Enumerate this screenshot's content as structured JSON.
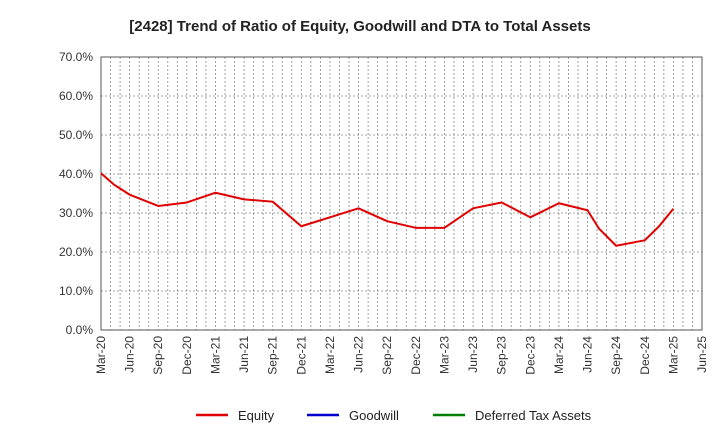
{
  "chart_data": {
    "type": "line",
    "title": "[2428]  Trend of Ratio of Equity, Goodwill and DTA to Total Assets",
    "xlabel": "",
    "ylabel": "",
    "ylim": [
      0,
      70
    ],
    "y_ticks": [
      "0.0%",
      "10.0%",
      "20.0%",
      "30.0%",
      "40.0%",
      "50.0%",
      "60.0%",
      "70.0%"
    ],
    "x_ticks": [
      "Mar-20",
      "Jun-20",
      "Sep-20",
      "Dec-20",
      "Mar-21",
      "Jun-21",
      "Sep-21",
      "Dec-21",
      "Mar-22",
      "Jun-22",
      "Sep-22",
      "Dec-22",
      "Mar-23",
      "Jun-23",
      "Sep-23",
      "Dec-23",
      "Mar-24",
      "Jun-24",
      "Sep-24",
      "Dec-24",
      "Mar-25",
      "Jun-25"
    ],
    "grid": true,
    "legend_position": "bottom",
    "series": [
      {
        "name": "Equity",
        "color": "#e00000",
        "x": [
          "Mar-20",
          "Jun-20",
          "Sep-20",
          "Dec-20",
          "Mar-21",
          "Jun-21",
          "Sep-21",
          "Dec-21",
          "Mar-22",
          "Jun-22",
          "Sep-22",
          "Dec-22",
          "Mar-23",
          "Jun-23",
          "Sep-23",
          "Dec-23",
          "Mar-24",
          "Jun-24",
          "Sep-24",
          "Dec-24",
          "Mar-25"
        ],
        "values": [
          40.2,
          34.7,
          31.8,
          32.7,
          35.2,
          33.5,
          32.9,
          26.6,
          28.9,
          31.2,
          27.9,
          26.2,
          26.2,
          31.2,
          32.7,
          28.9,
          32.5,
          30.7,
          21.6,
          23.0,
          31.1
        ],
        "extra_points": [
          {
            "x_index": 0.45,
            "value": 37.3
          },
          {
            "x_index": 17.4,
            "value": 26.0
          },
          {
            "x_index": 19.5,
            "value": 26.6
          }
        ]
      },
      {
        "name": "Goodwill",
        "color": "#0000cc",
        "values": []
      },
      {
        "name": "Deferred Tax Assets",
        "color": "#008000",
        "values": []
      }
    ]
  }
}
